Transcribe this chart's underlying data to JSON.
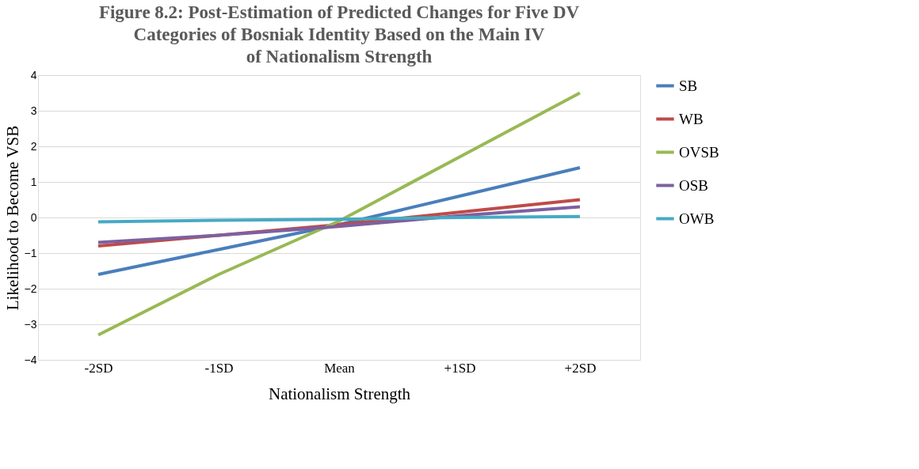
{
  "chart_data": {
    "type": "line",
    "title": "Figure 8.2: Post-Estimation of Predicted Changes for Five DV\nCategories of Bosniak Identity Based on the Main IV\nof Nationalism Strength",
    "xlabel": "Nationalism Strength",
    "ylabel": "Likelihood to Become VSB",
    "categories": [
      "-2SD",
      "-1SD",
      "Mean",
      "+1SD",
      "+2SD"
    ],
    "series": [
      {
        "name": "SB",
        "color": "#4a7ebb",
        "values": [
          -1.6,
          -0.9,
          -0.2,
          0.6,
          1.4
        ]
      },
      {
        "name": "WB",
        "color": "#be4b48",
        "values": [
          -0.8,
          -0.5,
          -0.2,
          0.15,
          0.5
        ]
      },
      {
        "name": "OVSB",
        "color": "#98b954",
        "values": [
          -3.3,
          -1.6,
          -0.1,
          1.7,
          3.5
        ]
      },
      {
        "name": "OSB",
        "color": "#7d60a0",
        "values": [
          -0.7,
          -0.5,
          -0.25,
          0.05,
          0.3
        ]
      },
      {
        "name": "OWB",
        "color": "#46aac5",
        "values": [
          -0.12,
          -0.08,
          -0.05,
          0.0,
          0.03
        ]
      }
    ],
    "ylim": [
      -4,
      4
    ],
    "yticks": [
      -4,
      -3,
      -2,
      -1,
      0,
      1,
      2,
      3,
      4
    ],
    "grid": "y",
    "legend": "right",
    "marker": "none",
    "line_style": "solid"
  }
}
